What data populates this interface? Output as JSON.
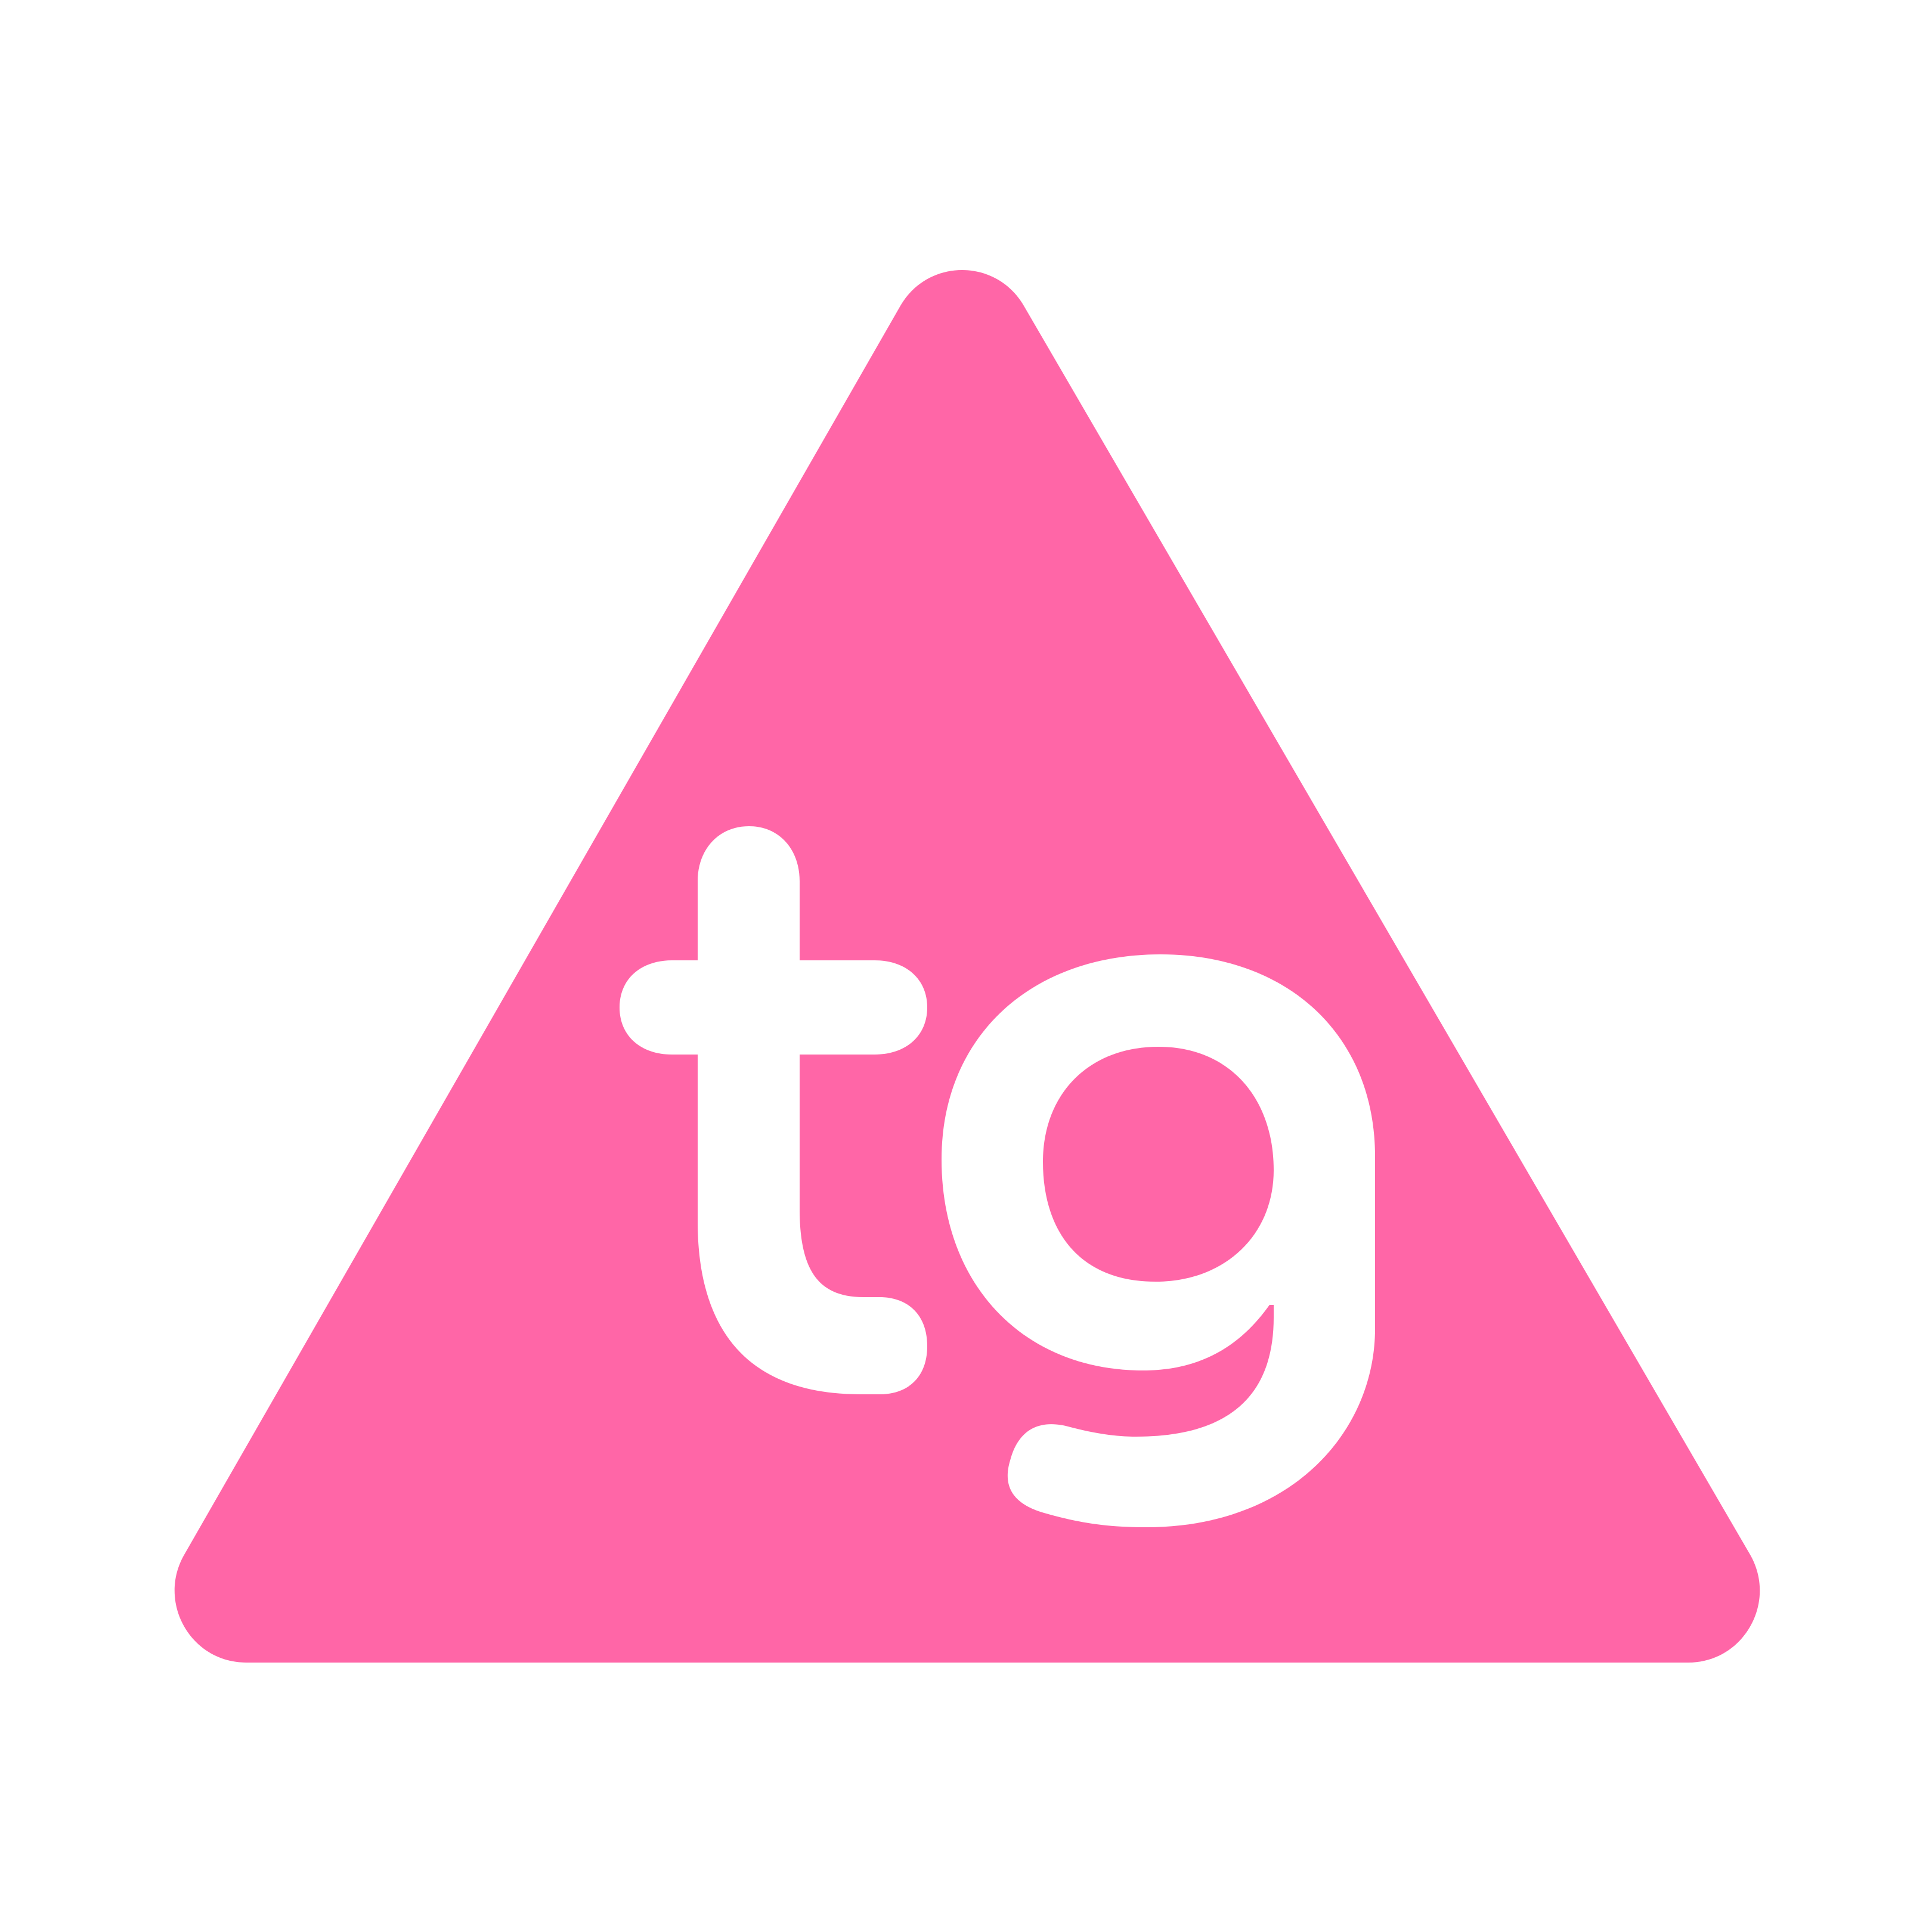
{
  "logo": {
    "text": "tg",
    "background_color": "#ffffff",
    "triangle_color": "#ff66a7",
    "letter_color": "#ffffff"
  }
}
